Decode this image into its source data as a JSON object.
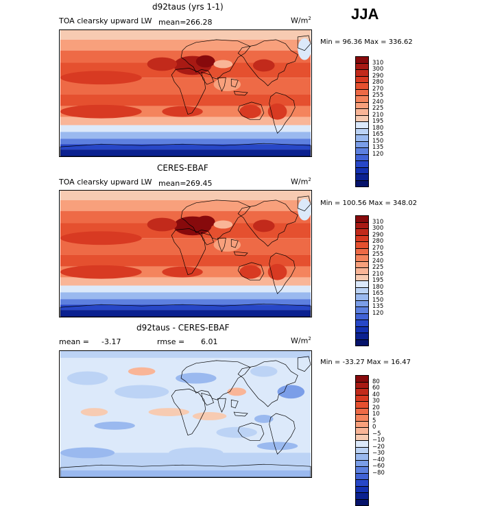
{
  "season": "JJA",
  "units_text": "W/m",
  "units_exp": "2",
  "colors": {
    "warm": [
      "#f7cbb2",
      "#f9b597",
      "#f8a07c",
      "#f4845d",
      "#ee6a46",
      "#e5502f",
      "#d83a22",
      "#c22a1b",
      "#a81a14",
      "#870a0c"
    ],
    "cool": [
      "#dce9fa",
      "#bcd3f5",
      "#9ab9ef",
      "#7b9ee8",
      "#5d80df",
      "#4163d6",
      "#2747c7",
      "#1431b0",
      "#0b2190",
      "#06136b"
    ]
  },
  "panels": [
    {
      "title": "d92taus (yrs 1-1)",
      "variable": "TOA clearsky upward LW",
      "mean_label": "mean=",
      "mean_value": "266.28",
      "minmax": "Min =   96.36 Max =  336.62",
      "legend": [
        "310",
        "300",
        "290",
        "280",
        "270",
        "255",
        "240",
        "225",
        "210",
        "195",
        "180",
        "165",
        "150",
        "135",
        "120"
      ]
    },
    {
      "title": "CERES-EBAF",
      "variable": "TOA clearsky upward LW",
      "mean_label": "mean=",
      "mean_value": "269.45",
      "minmax": "Min = 100.56 Max = 348.02",
      "legend": [
        "310",
        "300",
        "290",
        "280",
        "270",
        "255",
        "240",
        "225",
        "210",
        "195",
        "180",
        "165",
        "150",
        "135",
        "120"
      ]
    },
    {
      "title": "d92taus - CERES-EBAF",
      "mean_label": "mean =",
      "mean_value": "-3.17",
      "rmse_label": "rmse =",
      "rmse_value": "6.01",
      "minmax": "Min = -33.27 Max =   16.47",
      "legend": [
        "80",
        "60",
        "40",
        "30",
        "20",
        "10",
        "5",
        "0",
        "−5",
        "−10",
        "−20",
        "−30",
        "−40",
        "−60",
        "−80"
      ]
    }
  ]
}
